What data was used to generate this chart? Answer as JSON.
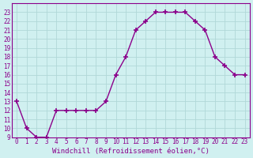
{
  "x": [
    0,
    1,
    2,
    3,
    4,
    5,
    6,
    7,
    8,
    9,
    10,
    11,
    12,
    13,
    14,
    15,
    16,
    17,
    18,
    19,
    20,
    21,
    22,
    23
  ],
  "y": [
    13,
    10,
    9,
    9,
    12,
    12,
    12,
    12,
    12,
    13,
    16,
    18,
    21,
    22,
    23,
    23,
    23,
    23,
    22,
    21,
    18,
    17,
    16,
    16
  ],
  "line_color": "#8B008B",
  "marker": "+",
  "marker_size": 5,
  "bg_color": "#d0f0f0",
  "grid_color": "#b0d8d8",
  "xlabel": "Windchill (Refroidissement éolien,°C)",
  "ylim_min": 9,
  "ylim_max": 24,
  "xlim_min": -0.5,
  "xlim_max": 23.5,
  "yticks": [
    9,
    10,
    11,
    12,
    13,
    14,
    15,
    16,
    17,
    18,
    19,
    20,
    21,
    22,
    23
  ],
  "xticks": [
    0,
    1,
    2,
    3,
    4,
    5,
    6,
    7,
    8,
    9,
    10,
    11,
    12,
    13,
    14,
    15,
    16,
    17,
    18,
    19,
    20,
    21,
    22,
    23
  ],
  "tick_label_fontsize": 5.5,
  "xlabel_fontsize": 6.5,
  "line_width": 1.0,
  "markeredgewidth": 1.2
}
